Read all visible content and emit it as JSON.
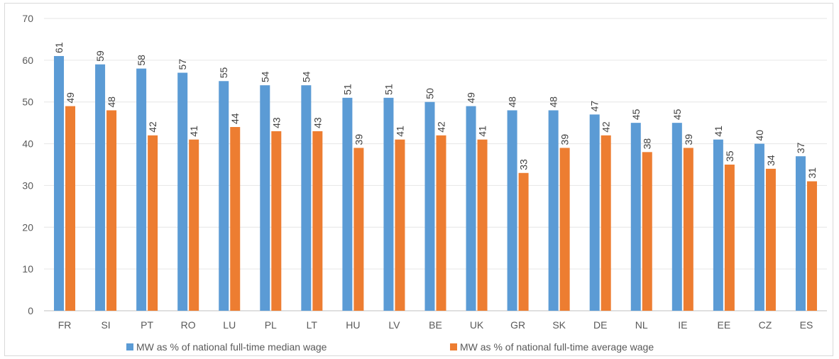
{
  "chart_data": {
    "type": "bar",
    "categories": [
      "FR",
      "SI",
      "PT",
      "RO",
      "LU",
      "PL",
      "LT",
      "HU",
      "LV",
      "BE",
      "UK",
      "GR",
      "SK",
      "DE",
      "NL",
      "IE",
      "EE",
      "CZ",
      "ES"
    ],
    "series": [
      {
        "name": "MW as % of national full-time median wage",
        "color": "#5b9bd5",
        "values": [
          61,
          59,
          58,
          57,
          55,
          54,
          54,
          51,
          51,
          50,
          49,
          48,
          48,
          47,
          45,
          45,
          41,
          40,
          37
        ]
      },
      {
        "name": "MW as % of national full-time average wage",
        "color": "#ed7d31",
        "values": [
          49,
          48,
          42,
          41,
          44,
          43,
          43,
          39,
          41,
          42,
          41,
          33,
          39,
          42,
          38,
          39,
          35,
          34,
          31
        ]
      }
    ],
    "ylim": [
      0,
      70
    ],
    "yticks": [
      0,
      10,
      20,
      30,
      40,
      50,
      60,
      70
    ],
    "grid": true,
    "legend_position": "bottom",
    "data_labels": true,
    "title": "",
    "xlabel": "",
    "ylabel": ""
  }
}
